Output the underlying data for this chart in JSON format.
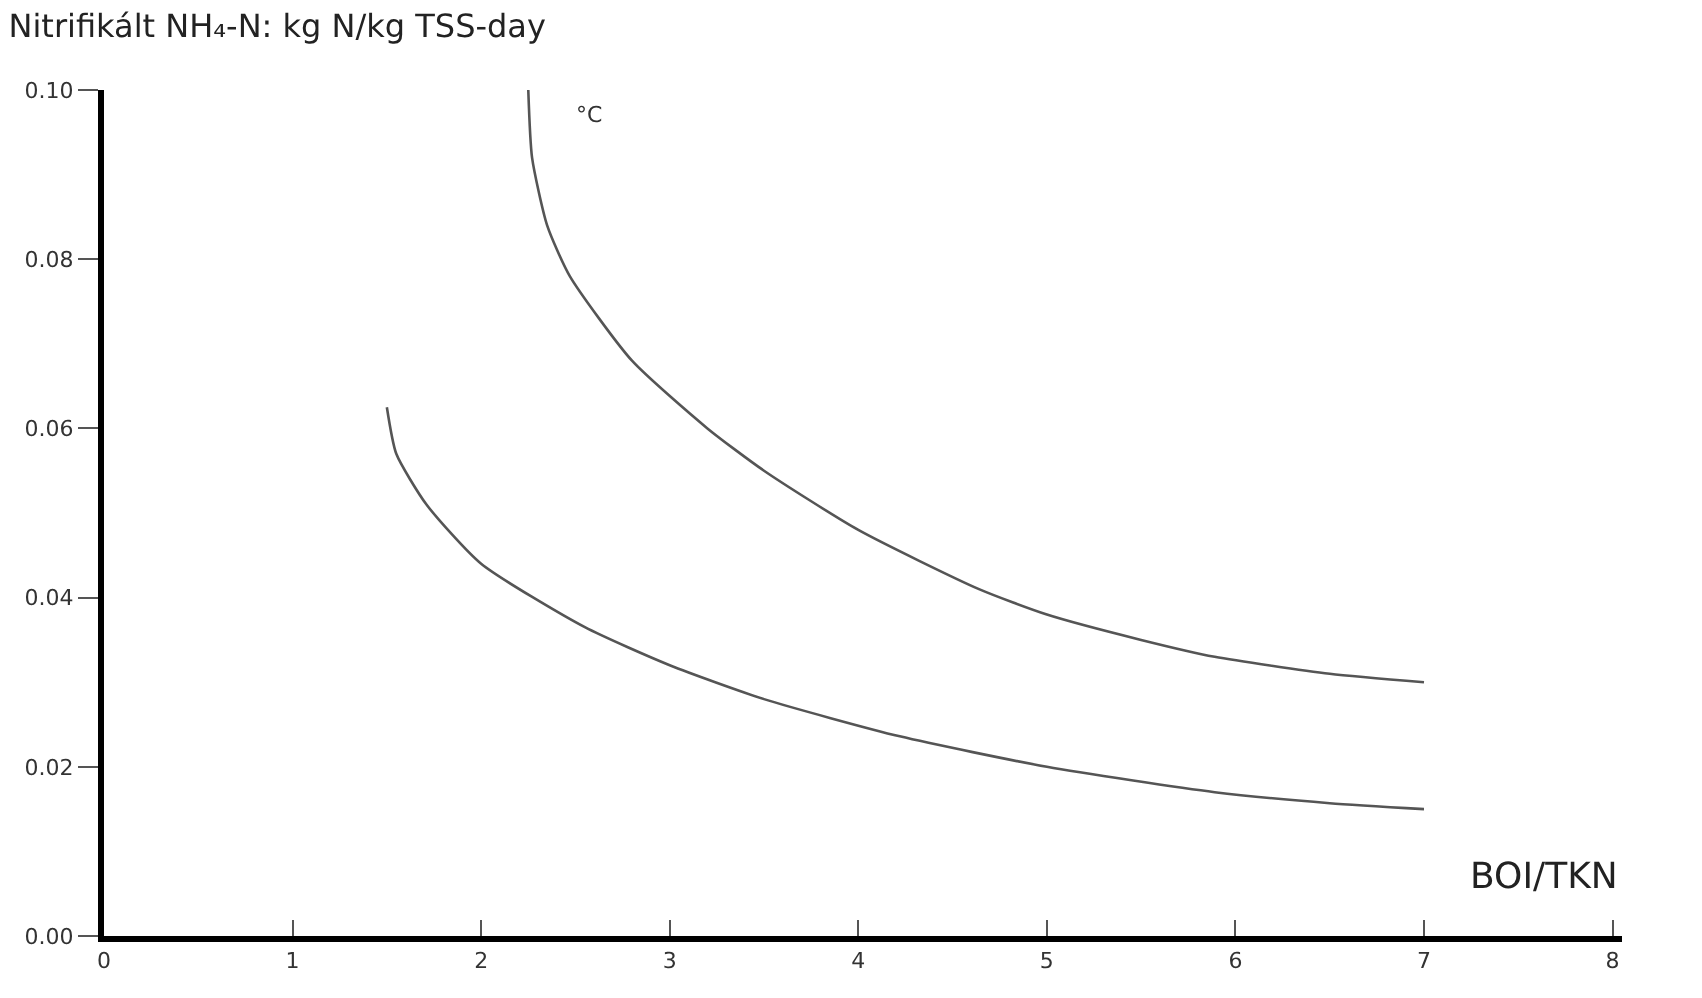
{
  "chart_data": {
    "type": "line",
    "title": "Nitrifikált NH₄-N: kg N/kg TSS-day",
    "xlabel": "BOI/TKN",
    "series": [
      {
        "color": "#555555",
        "x": [
          2.25,
          2.27,
          2.35,
          2.47,
          2.8,
          3.2,
          3.5,
          4.0,
          4.64,
          5.0,
          5.5,
          5.89,
          6.5,
          7.0
        ],
        "values": [
          0.1,
          0.092,
          0.084,
          0.078,
          0.068,
          0.06,
          0.055,
          0.048,
          0.041,
          0.038,
          0.035,
          0.033,
          0.031,
          0.03
        ]
      },
      {
        "color": "#555555",
        "x": [
          1.5,
          1.55,
          1.71,
          2.0,
          2.55,
          3.0,
          3.5,
          4.22,
          5.0,
          5.89,
          6.5,
          7.0
        ],
        "values": [
          0.0625,
          0.057,
          0.051,
          0.044,
          0.0365,
          0.032,
          0.028,
          0.0236,
          0.02,
          0.017,
          0.0157,
          0.015
        ]
      }
    ],
    "annotations": [
      "°C"
    ],
    "xlim": [
      0,
      8.05
    ],
    "ylim": [
      0,
      0.1
    ],
    "xticks": [
      0,
      1,
      2,
      3,
      4,
      5,
      6,
      7,
      8
    ],
    "yticks": [
      {
        "value": 0,
        "label": "0.00"
      },
      {
        "value": 0.02,
        "label": "0.02"
      },
      {
        "value": 0.04,
        "label": "0.04"
      },
      {
        "value": 0.06,
        "label": "0.06"
      },
      {
        "value": 0.08,
        "label": "0.08"
      },
      {
        "value": 0.1,
        "label": "0.10"
      }
    ],
    "marker": "none",
    "line_style": "solid"
  }
}
